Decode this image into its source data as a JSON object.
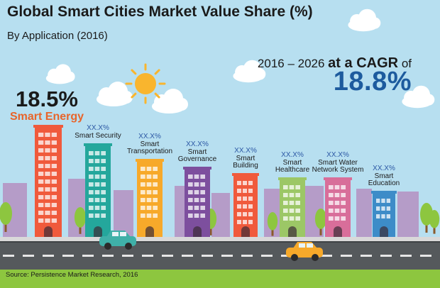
{
  "header": {
    "title": "Global Smart Cities Market Value Share (%)",
    "subtitle": "By Application (2016)"
  },
  "cagr": {
    "period": "2016 – 2026 ",
    "at_a": "at a ",
    "cagr_word": "CAGR",
    "of": " of",
    "value": "18.8%"
  },
  "chart_data": {
    "type": "bar",
    "title": "Global Smart Cities Market Value Share (%)",
    "subtitle": "By Application (2016)",
    "categories": [
      "Smart Energy",
      "Smart Security",
      "Smart Transportation",
      "Smart Governance",
      "Smart Building",
      "Smart Healthcare",
      "Smart Water Network System",
      "Smart Education"
    ],
    "category_labels": [
      "Smart Energy",
      "Smart Security",
      "Smart\nTransportation",
      "Smart\nGovernance",
      "Smart\nBuilding",
      "Smart\nHealthcare",
      "Smart Water\nNetwork System",
      "Smart\nEducation"
    ],
    "value_labels": [
      "18.5%",
      "XX.X%",
      "XX.X%",
      "XX.X%",
      "XX.X%",
      "XX.X%",
      "XX.X%",
      "XX.X%"
    ],
    "values": [
      18.5,
      null,
      null,
      null,
      null,
      null,
      null,
      null
    ],
    "relative_heights": [
      1.0,
      0.83,
      0.69,
      0.62,
      0.56,
      0.52,
      0.52,
      0.4
    ],
    "colors": [
      "#f05a3c",
      "#24a79c",
      "#f7a92a",
      "#7d4f9e",
      "#f05a3c",
      "#9cc766",
      "#d86e9a",
      "#3d8cc8"
    ],
    "legend": "none",
    "grid": false
  },
  "scene_colors": {
    "sky": "#b7dff0",
    "cloud": "#ffffff",
    "sun": "#f9b52e",
    "back_building": "#b59cc8",
    "grass": "#8dc63f",
    "road": "#55595c",
    "road_stripe": "#e6e6e6",
    "sidewalk": "#d9d9d9",
    "tree": "#8dc63f",
    "trunk": "#8a5a2b",
    "car_teal": "#3fb0a8",
    "car_orange": "#f7a92a",
    "window_light": "#ffffff"
  },
  "footer": {
    "source": "Source: Persistence Market Research, 2016"
  }
}
